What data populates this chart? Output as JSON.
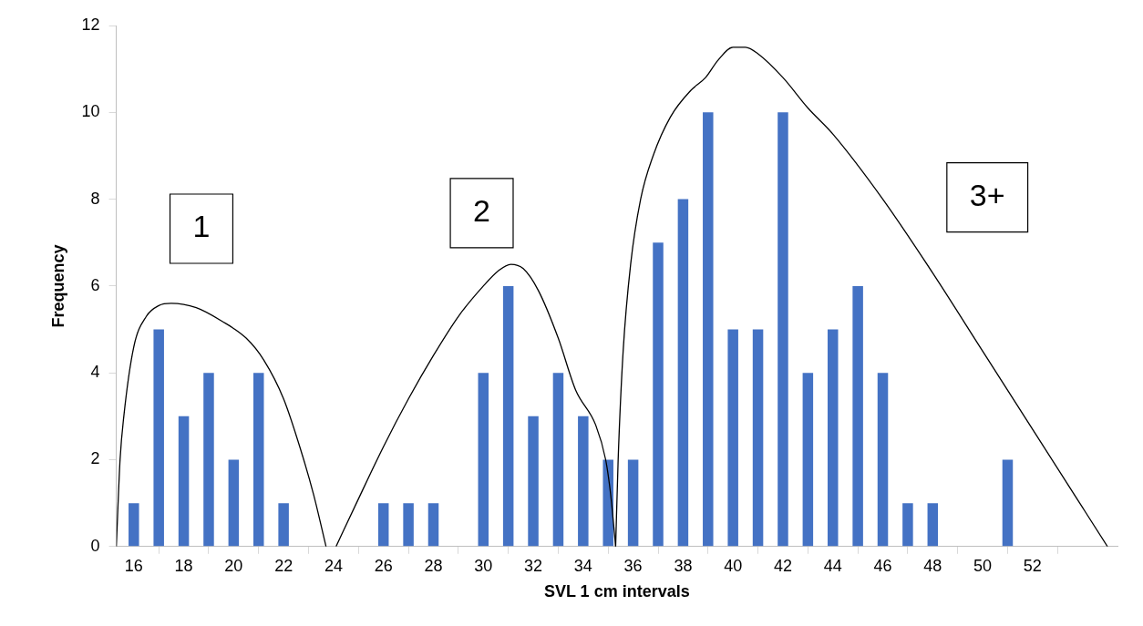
{
  "chart_data": {
    "type": "bar",
    "xlabel": "SVL 1 cm intervals",
    "ylabel": "Frequency",
    "x": [
      16,
      17,
      18,
      19,
      20,
      21,
      22,
      23,
      24,
      25,
      26,
      27,
      28,
      29,
      30,
      31,
      32,
      33,
      34,
      35,
      36,
      37,
      38,
      39,
      40,
      41,
      42,
      43,
      44,
      45,
      46,
      47,
      48,
      49,
      50,
      51,
      52,
      53,
      54,
      55
    ],
    "xlim": [
      15.3,
      55.4
    ],
    "xticks": [
      16,
      18,
      20,
      22,
      24,
      26,
      28,
      30,
      32,
      34,
      36,
      38,
      40,
      42,
      44,
      46,
      48,
      50,
      52
    ],
    "ylim": [
      0,
      12
    ],
    "yticks": [
      0,
      2,
      4,
      6,
      8,
      10,
      12
    ],
    "grid": false,
    "legend": false,
    "marker": "none",
    "line_style": "solid",
    "series": [
      {
        "color": "#4472c4",
        "values": [
          1,
          5,
          3,
          4,
          2,
          4,
          1,
          0,
          0,
          0,
          1,
          1,
          1,
          0,
          4,
          6,
          3,
          4,
          3,
          2,
          2,
          7,
          8,
          10,
          5,
          5,
          10,
          4,
          5,
          6,
          4,
          1,
          1,
          0,
          0,
          2,
          0,
          0,
          0,
          0
        ]
      },
      {
        "type": "line",
        "color": "#000000",
        "x": [
          15.3,
          15.45,
          15.6,
          16,
          16.5,
          17,
          17.5,
          18.5,
          19.5,
          20.5,
          21.2,
          22,
          22.7,
          23.2,
          23.7
        ],
        "values": [
          0,
          2,
          3,
          4.6,
          5.3,
          5.55,
          5.6,
          5.5,
          5.2,
          4.8,
          4.3,
          3.4,
          2.2,
          1.2,
          0
        ]
      },
      {
        "type": "line",
        "color": "#000000",
        "x": [
          24.1,
          25,
          26,
          27,
          28,
          29,
          30,
          30.6,
          31.1,
          31.6,
          32.2,
          33,
          33.7,
          34.5,
          34.9,
          35.1,
          35.3
        ],
        "values": [
          0,
          1.1,
          2.3,
          3.4,
          4.4,
          5.3,
          6,
          6.35,
          6.5,
          6.4,
          5.9,
          4.8,
          3.6,
          2.8,
          2,
          1.2,
          0
        ]
      },
      {
        "type": "line",
        "color": "#000000",
        "x": [
          35.3,
          35.4,
          35.6,
          35.9,
          36.3,
          36.8,
          37.5,
          38.3,
          38.9,
          39.4,
          40,
          40.5,
          41,
          42,
          43,
          44,
          46,
          48,
          50,
          52,
          54,
          55
        ],
        "values": [
          0,
          2,
          4.5,
          6.5,
          8,
          9,
          9.9,
          10.5,
          10.8,
          11.2,
          11.5,
          11.5,
          11.35,
          10.8,
          10.1,
          9.5,
          8,
          6.3,
          4.5,
          2.7,
          0.9,
          0
        ]
      }
    ],
    "annotations": [
      "1",
      "2",
      "3+"
    ]
  }
}
